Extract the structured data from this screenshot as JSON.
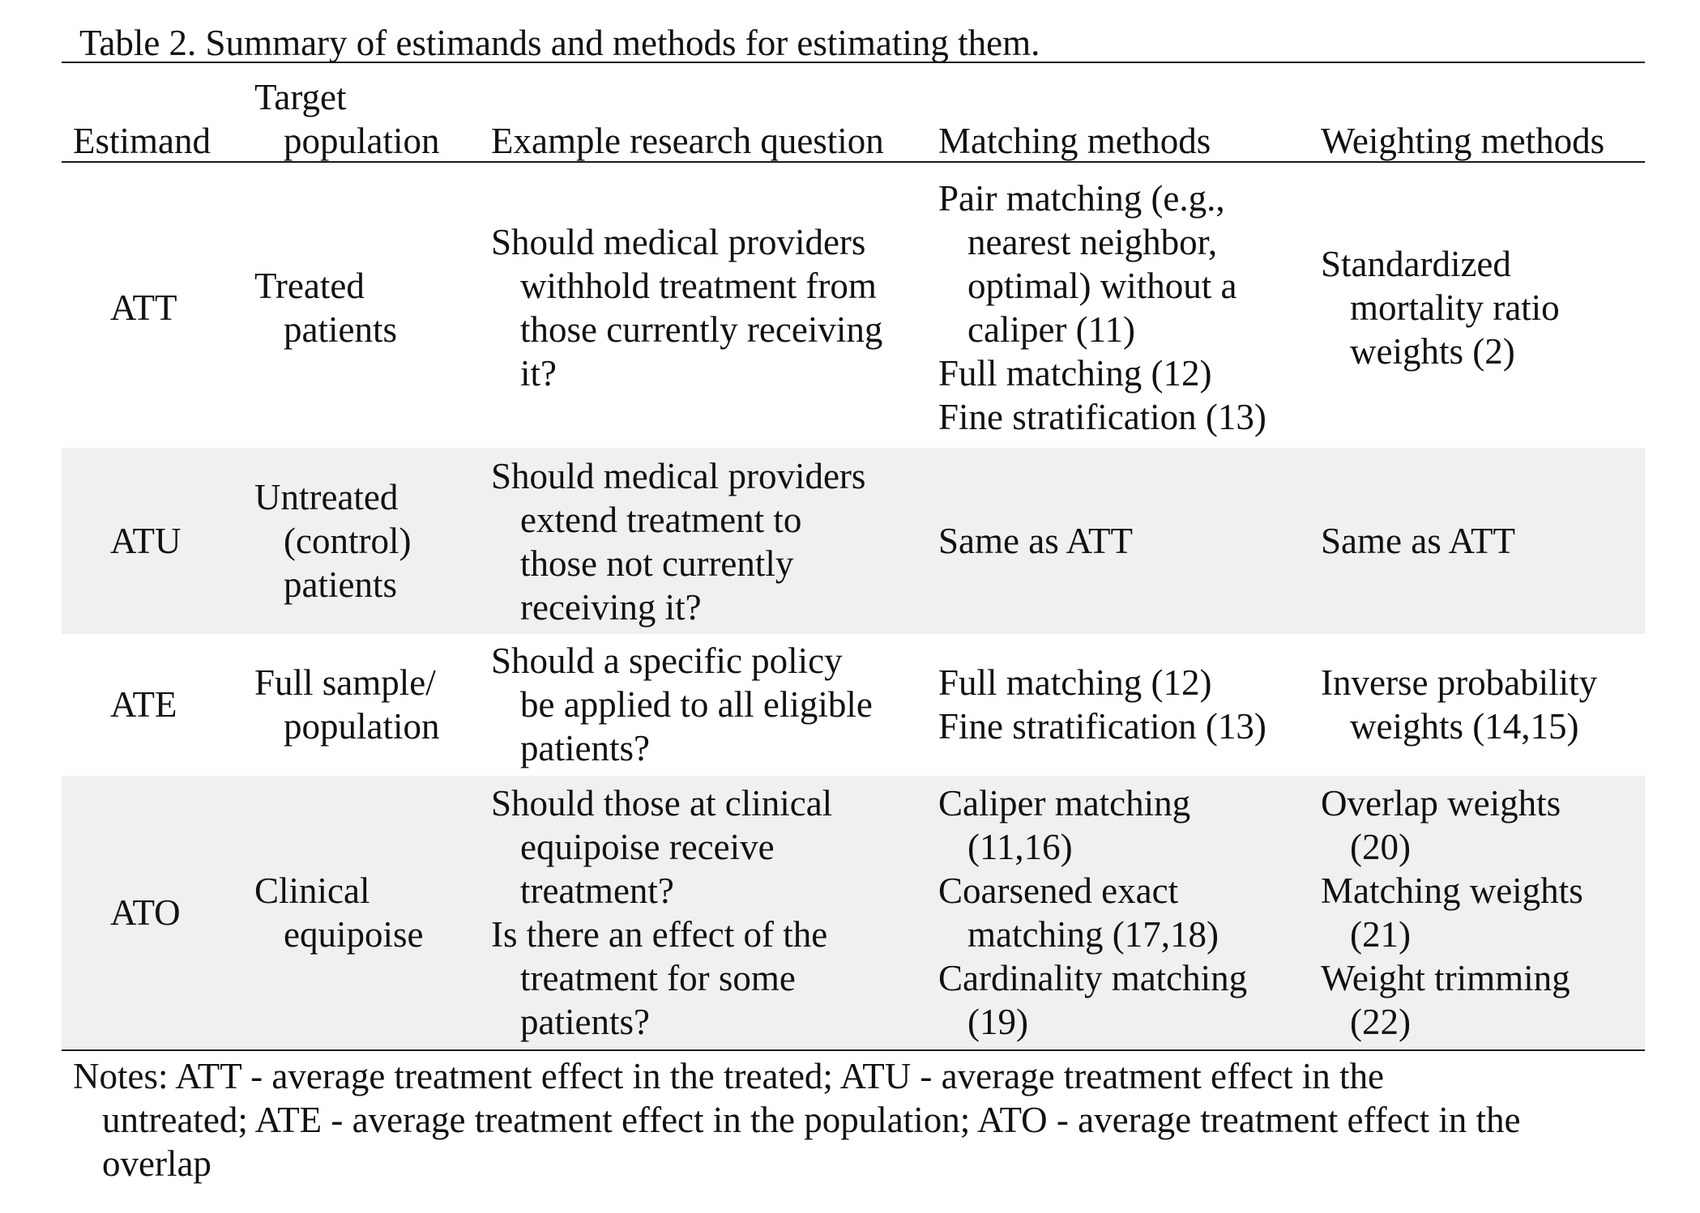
{
  "caption": "Table 2. Summary of estimands and methods for estimating them.",
  "headers": {
    "estimand": [
      "Estimand"
    ],
    "target_population": [
      "Target",
      "population"
    ],
    "research_question": [
      "Example research question"
    ],
    "matching_methods": [
      "Matching methods"
    ],
    "weighting_methods": [
      "Weighting methods"
    ]
  },
  "rows": [
    {
      "estimand": "ATT",
      "target_population": [
        "Treated",
        "patients"
      ],
      "research_question": [
        "Should medical providers",
        "withhold treatment from",
        "those currently receiving",
        "it?"
      ],
      "matching_methods": [
        "Pair matching (e.g.,",
        "nearest neighbor,",
        "optimal) without a",
        "caliper (11)",
        "Full matching (12)",
        "Fine stratification (13)"
      ],
      "weighting_methods": [
        "Standardized",
        "mortality ratio",
        "weights (2)"
      ]
    },
    {
      "estimand": "ATU",
      "target_population": [
        "Untreated",
        "(control)",
        "patients"
      ],
      "research_question": [
        "Should medical providers",
        "extend treatment to",
        "those not currently",
        "receiving it?"
      ],
      "matching_methods": [
        "Same as ATT"
      ],
      "weighting_methods": [
        "Same as ATT"
      ]
    },
    {
      "estimand": "ATE",
      "target_population": [
        "Full sample/",
        "population"
      ],
      "research_question": [
        "Should a specific policy",
        "be applied to all eligible",
        "patients?"
      ],
      "matching_methods": [
        "Full matching (12)",
        "Fine stratification (13)"
      ],
      "weighting_methods": [
        "Inverse probability",
        "weights (14,15)"
      ]
    },
    {
      "estimand": "ATO",
      "target_population": [
        "Clinical",
        "equipoise"
      ],
      "research_question": [
        "Should those at clinical",
        "equipoise receive",
        "treatment?",
        "Is there an effect of the",
        "treatment for some",
        "patients?"
      ],
      "matching_methods": [
        "Caliper matching",
        "(11,16)",
        "Coarsened exact",
        "matching (17,18)",
        "Cardinality matching",
        "(19)"
      ],
      "weighting_methods": [
        "Overlap weights",
        "(20)",
        "Matching weights",
        "(21)",
        "Weight trimming",
        "(22)"
      ]
    }
  ],
  "notes": [
    "Notes: ATT - average treatment effect in the treated; ATU - average treatment effect in the",
    "untreated; ATE - average treatment effect in the population; ATO - average treatment effect in the",
    "overlap"
  ]
}
